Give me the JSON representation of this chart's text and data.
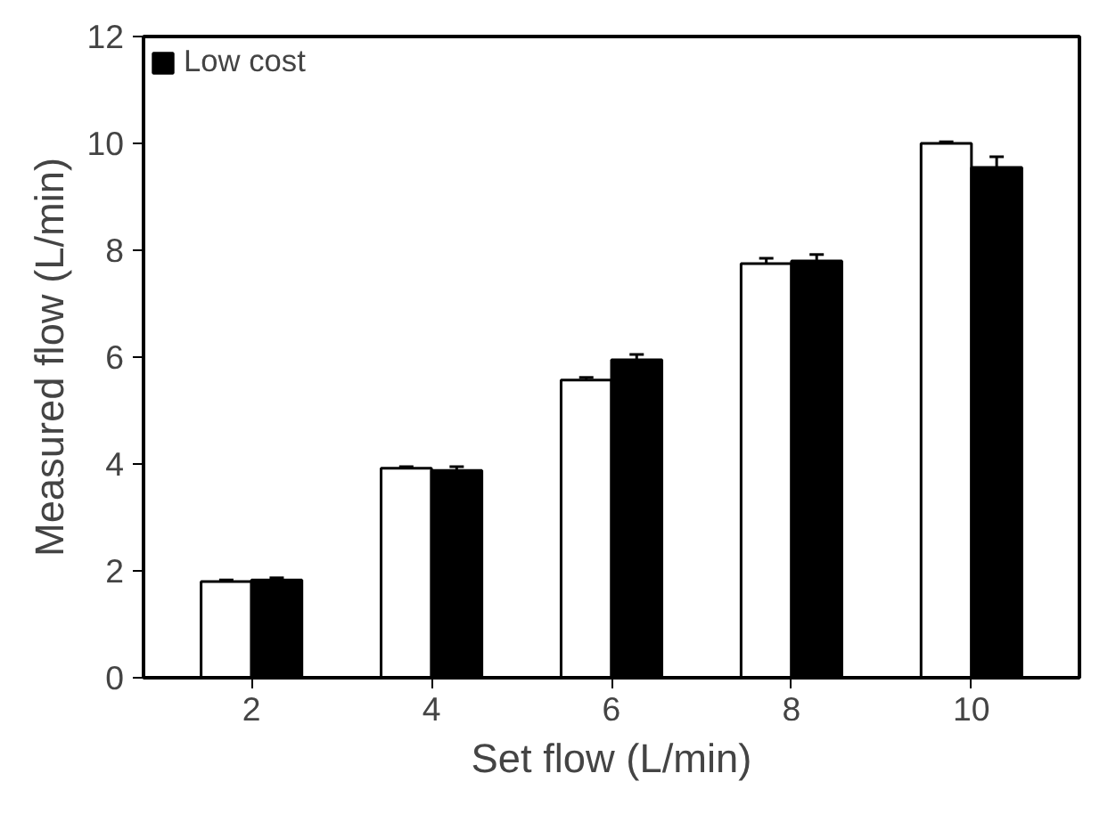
{
  "chart_data": {
    "type": "bar",
    "xlabel": "Set flow (L/min)",
    "ylabel": "Measured flow (L/min)",
    "categories": [
      "2",
      "4",
      "6",
      "8",
      "10"
    ],
    "series": [
      {
        "color": "#ffffff",
        "values": [
          1.8,
          3.92,
          5.57,
          7.75,
          10.0
        ],
        "errors": [
          0.03,
          0.03,
          0.05,
          0.1,
          0.03
        ]
      },
      {
        "name": "Low cost",
        "color": "#000000",
        "values": [
          1.83,
          3.88,
          5.95,
          7.8,
          9.55
        ],
        "errors": [
          0.04,
          0.07,
          0.1,
          0.12,
          0.2
        ]
      }
    ],
    "ylim": [
      0,
      12
    ],
    "yticks": [
      0,
      2,
      4,
      6,
      8,
      10,
      12
    ],
    "grid": false,
    "legend": "top left"
  }
}
